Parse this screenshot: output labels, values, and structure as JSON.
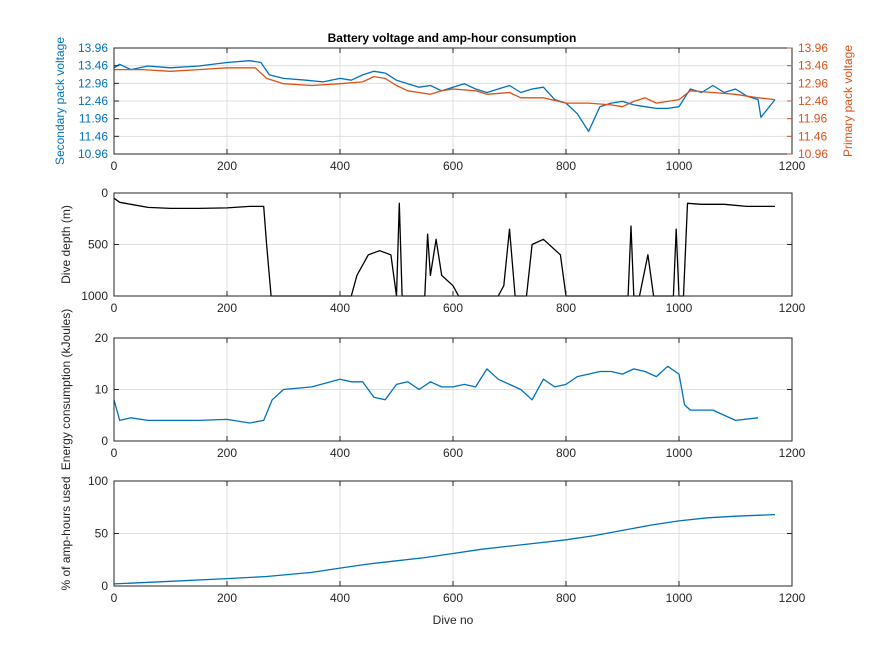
{
  "colors": {
    "secondary": "#0072BD",
    "primary": "#D95319",
    "depth": "#000000",
    "energy": "#0072BD",
    "amphours": "#0072BD",
    "grid": "#dfdfdf",
    "axis": "#262626"
  },
  "chart_data": [
    {
      "type": "line",
      "title": "Battery voltage and amp-hour consumption",
      "xlabel": "",
      "ylabel": "Secondary pack voltage",
      "ylabel_right": "Primary pack voltage",
      "xlim": [
        0,
        1200
      ],
      "ylim": [
        10.96,
        13.96
      ],
      "xticks": [
        "0",
        "200",
        "400",
        "600",
        "800",
        "1000",
        "1200"
      ],
      "yticks": [
        "10.96",
        "11.46",
        "11.96",
        "12.46",
        "12.96",
        "13.46",
        "13.96"
      ],
      "yticks_right": [
        "10.96",
        "11.46",
        "11.96",
        "12.46",
        "12.96",
        "13.46",
        "13.96"
      ],
      "grid": true,
      "series": [
        {
          "axis": "left",
          "color": "#0072BD",
          "points": [
            [
              0,
              13.4
            ],
            [
              10,
              13.5
            ],
            [
              30,
              13.35
            ],
            [
              60,
              13.45
            ],
            [
              100,
              13.4
            ],
            [
              150,
              13.45
            ],
            [
              200,
              13.55
            ],
            [
              240,
              13.6
            ],
            [
              260,
              13.55
            ],
            [
              275,
              13.2
            ],
            [
              300,
              13.1
            ],
            [
              340,
              13.05
            ],
            [
              370,
              13.0
            ],
            [
              400,
              13.1
            ],
            [
              420,
              13.05
            ],
            [
              440,
              13.2
            ],
            [
              460,
              13.3
            ],
            [
              480,
              13.25
            ],
            [
              500,
              13.05
            ],
            [
              520,
              12.95
            ],
            [
              540,
              12.85
            ],
            [
              560,
              12.9
            ],
            [
              580,
              12.75
            ],
            [
              600,
              12.85
            ],
            [
              620,
              12.95
            ],
            [
              640,
              12.8
            ],
            [
              660,
              12.7
            ],
            [
              680,
              12.8
            ],
            [
              700,
              12.9
            ],
            [
              720,
              12.7
            ],
            [
              740,
              12.8
            ],
            [
              760,
              12.85
            ],
            [
              780,
              12.5
            ],
            [
              800,
              12.4
            ],
            [
              820,
              12.1
            ],
            [
              840,
              11.6
            ],
            [
              860,
              12.3
            ],
            [
              880,
              12.4
            ],
            [
              900,
              12.45
            ],
            [
              920,
              12.35
            ],
            [
              940,
              12.3
            ],
            [
              960,
              12.25
            ],
            [
              980,
              12.25
            ],
            [
              1000,
              12.3
            ],
            [
              1020,
              12.8
            ],
            [
              1040,
              12.7
            ],
            [
              1060,
              12.9
            ],
            [
              1080,
              12.7
            ],
            [
              1100,
              12.8
            ],
            [
              1120,
              12.6
            ],
            [
              1140,
              12.5
            ],
            [
              1145,
              12.0
            ],
            [
              1170,
              12.5
            ]
          ]
        },
        {
          "axis": "right",
          "color": "#D95319",
          "points": [
            [
              0,
              13.35
            ],
            [
              50,
              13.35
            ],
            [
              100,
              13.3
            ],
            [
              150,
              13.35
            ],
            [
              200,
              13.4
            ],
            [
              250,
              13.4
            ],
            [
              270,
              13.1
            ],
            [
              300,
              12.95
            ],
            [
              350,
              12.9
            ],
            [
              400,
              12.95
            ],
            [
              440,
              13.0
            ],
            [
              460,
              13.15
            ],
            [
              480,
              13.1
            ],
            [
              500,
              12.9
            ],
            [
              520,
              12.75
            ],
            [
              540,
              12.7
            ],
            [
              560,
              12.65
            ],
            [
              580,
              12.75
            ],
            [
              600,
              12.8
            ],
            [
              640,
              12.75
            ],
            [
              660,
              12.65
            ],
            [
              700,
              12.7
            ],
            [
              720,
              12.55
            ],
            [
              760,
              12.55
            ],
            [
              800,
              12.4
            ],
            [
              840,
              12.4
            ],
            [
              880,
              12.35
            ],
            [
              900,
              12.3
            ],
            [
              920,
              12.45
            ],
            [
              940,
              12.55
            ],
            [
              960,
              12.4
            ],
            [
              1000,
              12.5
            ],
            [
              1020,
              12.75
            ],
            [
              1060,
              12.7
            ],
            [
              1100,
              12.65
            ],
            [
              1140,
              12.55
            ],
            [
              1170,
              12.5
            ]
          ]
        }
      ]
    },
    {
      "type": "line",
      "title": "",
      "xlabel": "",
      "ylabel": "Dive depth (m)",
      "xlim": [
        0,
        1200
      ],
      "ylim": [
        0,
        1000
      ],
      "y_reversed": true,
      "xticks": [
        "0",
        "200",
        "400",
        "600",
        "800",
        "1000",
        "1200"
      ],
      "yticks": [
        "0",
        "500",
        "1000"
      ],
      "grid": true,
      "series": [
        {
          "color": "#000000",
          "points": [
            [
              0,
              50
            ],
            [
              10,
              90
            ],
            [
              30,
              110
            ],
            [
              60,
              140
            ],
            [
              100,
              150
            ],
            [
              150,
              150
            ],
            [
              200,
              145
            ],
            [
              240,
              130
            ],
            [
              265,
              130
            ],
            [
              270,
              500
            ],
            [
              278,
              1000
            ],
            [
              420,
              1000
            ],
            [
              430,
              800
            ],
            [
              450,
              600
            ],
            [
              470,
              560
            ],
            [
              490,
              600
            ],
            [
              500,
              1000
            ],
            [
              505,
              100
            ],
            [
              510,
              1000
            ],
            [
              550,
              1000
            ],
            [
              555,
              400
            ],
            [
              560,
              800
            ],
            [
              570,
              450
            ],
            [
              580,
              800
            ],
            [
              600,
              900
            ],
            [
              610,
              1000
            ],
            [
              680,
              1000
            ],
            [
              690,
              900
            ],
            [
              700,
              350
            ],
            [
              710,
              1000
            ],
            [
              730,
              1000
            ],
            [
              740,
              500
            ],
            [
              760,
              450
            ],
            [
              790,
              600
            ],
            [
              800,
              1000
            ],
            [
              910,
              1000
            ],
            [
              915,
              320
            ],
            [
              920,
              1000
            ],
            [
              930,
              1000
            ],
            [
              945,
              600
            ],
            [
              955,
              1000
            ],
            [
              990,
              1000
            ],
            [
              995,
              350
            ],
            [
              1000,
              1000
            ],
            [
              1008,
              1000
            ],
            [
              1015,
              100
            ],
            [
              1040,
              110
            ],
            [
              1080,
              110
            ],
            [
              1120,
              130
            ],
            [
              1160,
              130
            ],
            [
              1170,
              130
            ]
          ]
        }
      ]
    },
    {
      "type": "line",
      "title": "",
      "xlabel": "",
      "ylabel": "Energy consumption (kJoules)",
      "xlim": [
        0,
        1200
      ],
      "ylim": [
        0,
        20
      ],
      "xticks": [
        "0",
        "200",
        "400",
        "600",
        "800",
        "1000",
        "1200"
      ],
      "yticks": [
        "0",
        "10",
        "20"
      ],
      "grid": true,
      "series": [
        {
          "color": "#0072BD",
          "points": [
            [
              0,
              8
            ],
            [
              10,
              4
            ],
            [
              30,
              4.5
            ],
            [
              60,
              4
            ],
            [
              100,
              4
            ],
            [
              150,
              4
            ],
            [
              200,
              4.2
            ],
            [
              240,
              3.5
            ],
            [
              265,
              4
            ],
            [
              280,
              8
            ],
            [
              300,
              10
            ],
            [
              350,
              10.5
            ],
            [
              400,
              12
            ],
            [
              420,
              11.5
            ],
            [
              440,
              11.5
            ],
            [
              460,
              8.5
            ],
            [
              480,
              8
            ],
            [
              500,
              11
            ],
            [
              520,
              11.5
            ],
            [
              540,
              10
            ],
            [
              560,
              11.5
            ],
            [
              580,
              10.5
            ],
            [
              600,
              10.5
            ],
            [
              620,
              11
            ],
            [
              640,
              10.5
            ],
            [
              660,
              14
            ],
            [
              680,
              12
            ],
            [
              700,
              11
            ],
            [
              720,
              10
            ],
            [
              740,
              8
            ],
            [
              760,
              12
            ],
            [
              780,
              10.5
            ],
            [
              800,
              11
            ],
            [
              820,
              12.5
            ],
            [
              840,
              13
            ],
            [
              860,
              13.5
            ],
            [
              880,
              13.5
            ],
            [
              900,
              13
            ],
            [
              920,
              14
            ],
            [
              940,
              13.5
            ],
            [
              960,
              12.5
            ],
            [
              980,
              14.5
            ],
            [
              1000,
              13
            ],
            [
              1010,
              7
            ],
            [
              1020,
              6
            ],
            [
              1060,
              6
            ],
            [
              1100,
              4
            ],
            [
              1140,
              4.5
            ]
          ]
        }
      ]
    },
    {
      "type": "line",
      "title": "",
      "xlabel": "Dive no",
      "ylabel": "% of amp-hours used",
      "xlim": [
        0,
        1200
      ],
      "ylim": [
        0,
        100
      ],
      "xticks": [
        "0",
        "200",
        "400",
        "600",
        "800",
        "1000",
        "1200"
      ],
      "yticks": [
        "0",
        "50",
        "100"
      ],
      "grid": true,
      "series": [
        {
          "color": "#0072BD",
          "points": [
            [
              0,
              2
            ],
            [
              100,
              4.5
            ],
            [
              200,
              7
            ],
            [
              270,
              9
            ],
            [
              350,
              13
            ],
            [
              400,
              17
            ],
            [
              450,
              21
            ],
            [
              500,
              24
            ],
            [
              550,
              27
            ],
            [
              600,
              31
            ],
            [
              650,
              35
            ],
            [
              700,
              38
            ],
            [
              750,
              41
            ],
            [
              800,
              44
            ],
            [
              850,
              48
            ],
            [
              900,
              53
            ],
            [
              950,
              58
            ],
            [
              1000,
              62
            ],
            [
              1050,
              65
            ],
            [
              1100,
              66.5
            ],
            [
              1170,
              68
            ]
          ]
        }
      ]
    }
  ]
}
